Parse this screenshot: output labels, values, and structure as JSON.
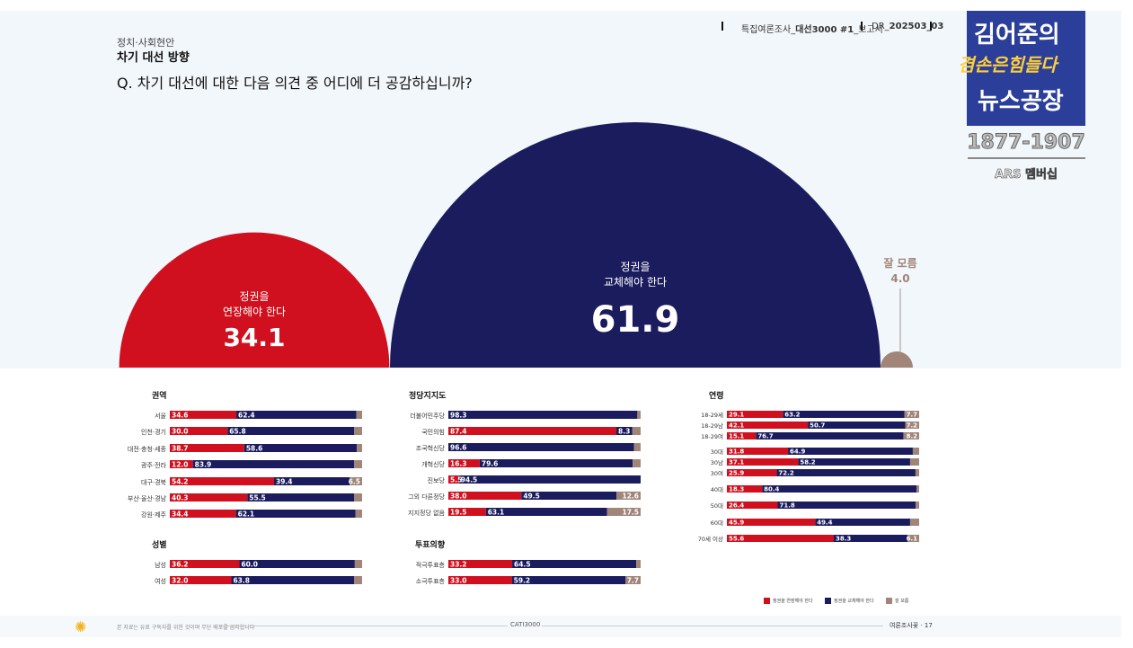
{
  "header": {
    "section": "정치·사회현안",
    "topic": "차기 대선 방향",
    "question": "Q. 차기 대선에 대한 다음 의견 중 어디에 더 공감하십니까?",
    "report_prefix": "특집여론조사_",
    "report_bold": "대선3000 #1",
    "report_suffix": "_보고서",
    "code_prefix": "DR_",
    "code_bold": "202503_03"
  },
  "overlay": {
    "line1": "김어준의",
    "line2": "겸손은힘들다",
    "line3": "뉴스공장",
    "phone": "1877-1907",
    "ars": "ARS 멤버십"
  },
  "colors": {
    "extend": "#d0101e",
    "replace": "#1b1c5e",
    "unknown": "#a08578"
  },
  "chart_data": [
    {
      "type": "bubble",
      "series": [
        {
          "name": "정권을 연장해야 한다",
          "label_lines": [
            "정권을",
            "연장해야 한다"
          ],
          "value": 34.1
        },
        {
          "name": "정권을 교체해야 한다",
          "label_lines": [
            "정권을",
            "교체해야 한다"
          ],
          "value": 61.9
        },
        {
          "name": "잘 모름",
          "label_lines": [
            "잘 모름"
          ],
          "value": 4.0
        }
      ]
    },
    {
      "type": "stacked-bar",
      "groups": [
        {
          "title": "권역",
          "categories": [
            "서울",
            "인천·경기",
            "대전·충청·세종",
            "광주·전라",
            "대구·경북",
            "부산·울산·경남",
            "강원·제주"
          ],
          "extend": [
            34.6,
            30.0,
            38.7,
            12.0,
            54.2,
            40.3,
            34.4
          ],
          "replace": [
            62.4,
            65.8,
            58.6,
            83.9,
            39.4,
            55.5,
            62.1
          ],
          "unknown_label": [
            "",
            "",
            "",
            "",
            "6.5",
            "",
            ""
          ]
        },
        {
          "title": "정당지지도",
          "categories": [
            "더불어민주당",
            "국민의힘",
            "조국혁신당",
            "개혁신당",
            "진보당",
            "그외 다른정당",
            "지지정당 없음"
          ],
          "extend": [
            null,
            87.4,
            null,
            16.3,
            5.5,
            38.0,
            19.5
          ],
          "replace": [
            98.3,
            8.3,
            96.6,
            79.6,
            94.5,
            49.5,
            63.1
          ],
          "unknown_label": [
            "",
            "",
            "",
            "",
            "",
            "12.6",
            "17.5"
          ]
        },
        {
          "title": "성별",
          "categories": [
            "남성",
            "여성"
          ],
          "extend": [
            36.2,
            32.0
          ],
          "replace": [
            60.0,
            63.8
          ],
          "unknown_label": [
            "",
            ""
          ]
        },
        {
          "title": "투표의향",
          "categories": [
            "적극투표층",
            "소극투표층"
          ],
          "extend": [
            33.2,
            33.0
          ],
          "replace": [
            64.5,
            59.2
          ],
          "unknown_label": [
            "",
            "7.7"
          ]
        },
        {
          "title": "연령",
          "categories": [
            "18-29세",
            "18-29남",
            "18-29여",
            "30대",
            "30남",
            "30여",
            "40대",
            "50대",
            "60대",
            "70세 이상"
          ],
          "extend": [
            29.1,
            42.1,
            15.1,
            31.8,
            37.1,
            25.9,
            18.3,
            26.4,
            45.9,
            55.6
          ],
          "replace": [
            63.2,
            50.7,
            76.7,
            64.9,
            58.2,
            72.2,
            80.4,
            71.8,
            49.4,
            38.3
          ],
          "unknown_label": [
            "7.7",
            "7.2",
            "8.2",
            "",
            "",
            "",
            "",
            "",
            "",
            "6.1"
          ]
        }
      ],
      "legend": [
        "정권을 연장해야 한다",
        "정권을 교체해야 한다",
        "잘 모름"
      ]
    }
  ],
  "footer": {
    "center": "CATI3000",
    "right": "여론조사꽃 · 17",
    "left_note": "본 자료는 유료 구독자를 위한 것이며 무단 배포를 금지합니다"
  }
}
